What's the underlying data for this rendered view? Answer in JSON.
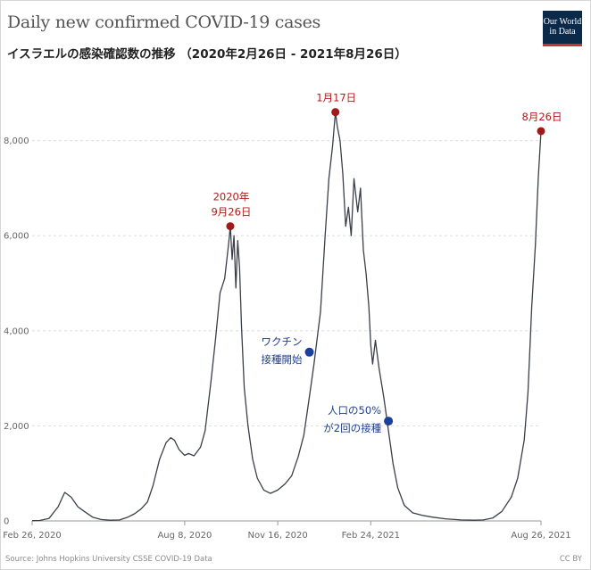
{
  "title": "Daily new confirmed COVID-19 cases",
  "subtitle": "イスラエルの感染確認数の推移 （2020年2月26日 - 2021年8月26日）",
  "logo": {
    "line1": "Our World",
    "line2": "in Data"
  },
  "source": "Source: Johns Hopkins University CSSE COVID-19 Data",
  "license": "CC BY",
  "colors": {
    "line": "#3a3f4a",
    "peak_marker": "#a11a1a",
    "vaccine_marker": "#1b3f9a",
    "grid": "#dddddd"
  },
  "chart_data": {
    "type": "line",
    "series": [
      {
        "name": "",
        "x": [
          "2020-02-26",
          "2020-03-05",
          "2020-03-15",
          "2020-03-25",
          "2020-04-01",
          "2020-04-08",
          "2020-04-15",
          "2020-04-22",
          "2020-05-01",
          "2020-05-10",
          "2020-05-20",
          "2020-05-30",
          "2020-06-08",
          "2020-06-15",
          "2020-06-22",
          "2020-06-29",
          "2020-07-05",
          "2020-07-12",
          "2020-07-19",
          "2020-07-24",
          "2020-07-28",
          "2020-08-02",
          "2020-08-08",
          "2020-08-12",
          "2020-08-18",
          "2020-08-25",
          "2020-08-30",
          "2020-09-05",
          "2020-09-10",
          "2020-09-15",
          "2020-09-20",
          "2020-09-24",
          "2020-09-26",
          "2020-09-28",
          "2020-09-30",
          "2020-10-02",
          "2020-10-04",
          "2020-10-06",
          "2020-10-08",
          "2020-10-11",
          "2020-10-15",
          "2020-10-20",
          "2020-10-25",
          "2020-11-01",
          "2020-11-08",
          "2020-11-16",
          "2020-11-24",
          "2020-12-01",
          "2020-12-08",
          "2020-12-14",
          "2020-12-20",
          "2020-12-25",
          "2021-01-01",
          "2021-01-06",
          "2021-01-10",
          "2021-01-14",
          "2021-01-17",
          "2021-01-19",
          "2021-01-22",
          "2021-01-25",
          "2021-01-28",
          "2021-01-31",
          "2021-02-03",
          "2021-02-06",
          "2021-02-10",
          "2021-02-13",
          "2021-02-16",
          "2021-02-19",
          "2021-02-22",
          "2021-02-24",
          "2021-02-26",
          "2021-03-01",
          "2021-03-05",
          "2021-03-10",
          "2021-03-15",
          "2021-03-20",
          "2021-03-25",
          "2021-04-01",
          "2021-04-10",
          "2021-04-20",
          "2021-05-01",
          "2021-05-15",
          "2021-06-01",
          "2021-06-15",
          "2021-06-25",
          "2021-07-05",
          "2021-07-15",
          "2021-07-25",
          "2021-08-01",
          "2021-08-08",
          "2021-08-12",
          "2021-08-16",
          "2021-08-20",
          "2021-08-23",
          "2021-08-26"
        ],
        "values": [
          5,
          10,
          50,
          300,
          600,
          500,
          300,
          200,
          80,
          30,
          15,
          20,
          80,
          150,
          250,
          400,
          750,
          1300,
          1650,
          1750,
          1700,
          1500,
          1380,
          1420,
          1370,
          1550,
          1900,
          2900,
          3800,
          4800,
          5100,
          5800,
          6200,
          5500,
          6000,
          4900,
          5900,
          5300,
          4100,
          2800,
          2000,
          1300,
          900,
          650,
          580,
          650,
          780,
          950,
          1350,
          1800,
          2600,
          3300,
          4400,
          6000,
          7200,
          7900,
          8600,
          8300,
          8000,
          7300,
          6200,
          6600,
          6000,
          7200,
          6500,
          7000,
          5700,
          5200,
          4500,
          3700,
          3300,
          3800,
          3200,
          2600,
          1900,
          1200,
          700,
          330,
          170,
          120,
          80,
          45,
          20,
          15,
          20,
          60,
          200,
          500,
          900,
          1700,
          2700,
          4500,
          5800,
          7200,
          8200
        ]
      }
    ],
    "xlabel": "",
    "ylabel": "",
    "x_ticks": [
      "Feb 26, 2020",
      "Aug 8, 2020",
      "Nov 16, 2020",
      "Feb 24, 2021",
      "Aug 26, 2021"
    ],
    "x_tick_dates": [
      "2020-02-26",
      "2020-08-08",
      "2020-11-16",
      "2021-02-24",
      "2021-08-26"
    ],
    "y_ticks": [
      0,
      2000,
      4000,
      6000,
      8000
    ],
    "y_tick_labels": [
      "0",
      "2,000",
      "4,000",
      "6,000",
      "8,000"
    ],
    "ylim": [
      0,
      8800
    ],
    "xlim": [
      "2020-02-26",
      "2021-08-26"
    ],
    "grid": "horizontal dotted",
    "annotations": [
      {
        "kind": "peak",
        "date": "2020-09-26",
        "value": 6200,
        "lines": [
          "2020年",
          "9月26日"
        ]
      },
      {
        "kind": "peak",
        "date": "2021-01-17",
        "value": 8600,
        "lines": [
          "1月17日"
        ]
      },
      {
        "kind": "peak",
        "date": "2021-08-26",
        "value": 8200,
        "lines": [
          "8月26日"
        ]
      },
      {
        "kind": "vaccine",
        "date": "2020-12-20",
        "value": 3550,
        "lines": [
          "ワクチン",
          "接種開始"
        ]
      },
      {
        "kind": "vaccine",
        "date": "2021-03-15",
        "value": 2100,
        "lines": [
          "人口の50%",
          "が2回の接種"
        ]
      }
    ]
  }
}
